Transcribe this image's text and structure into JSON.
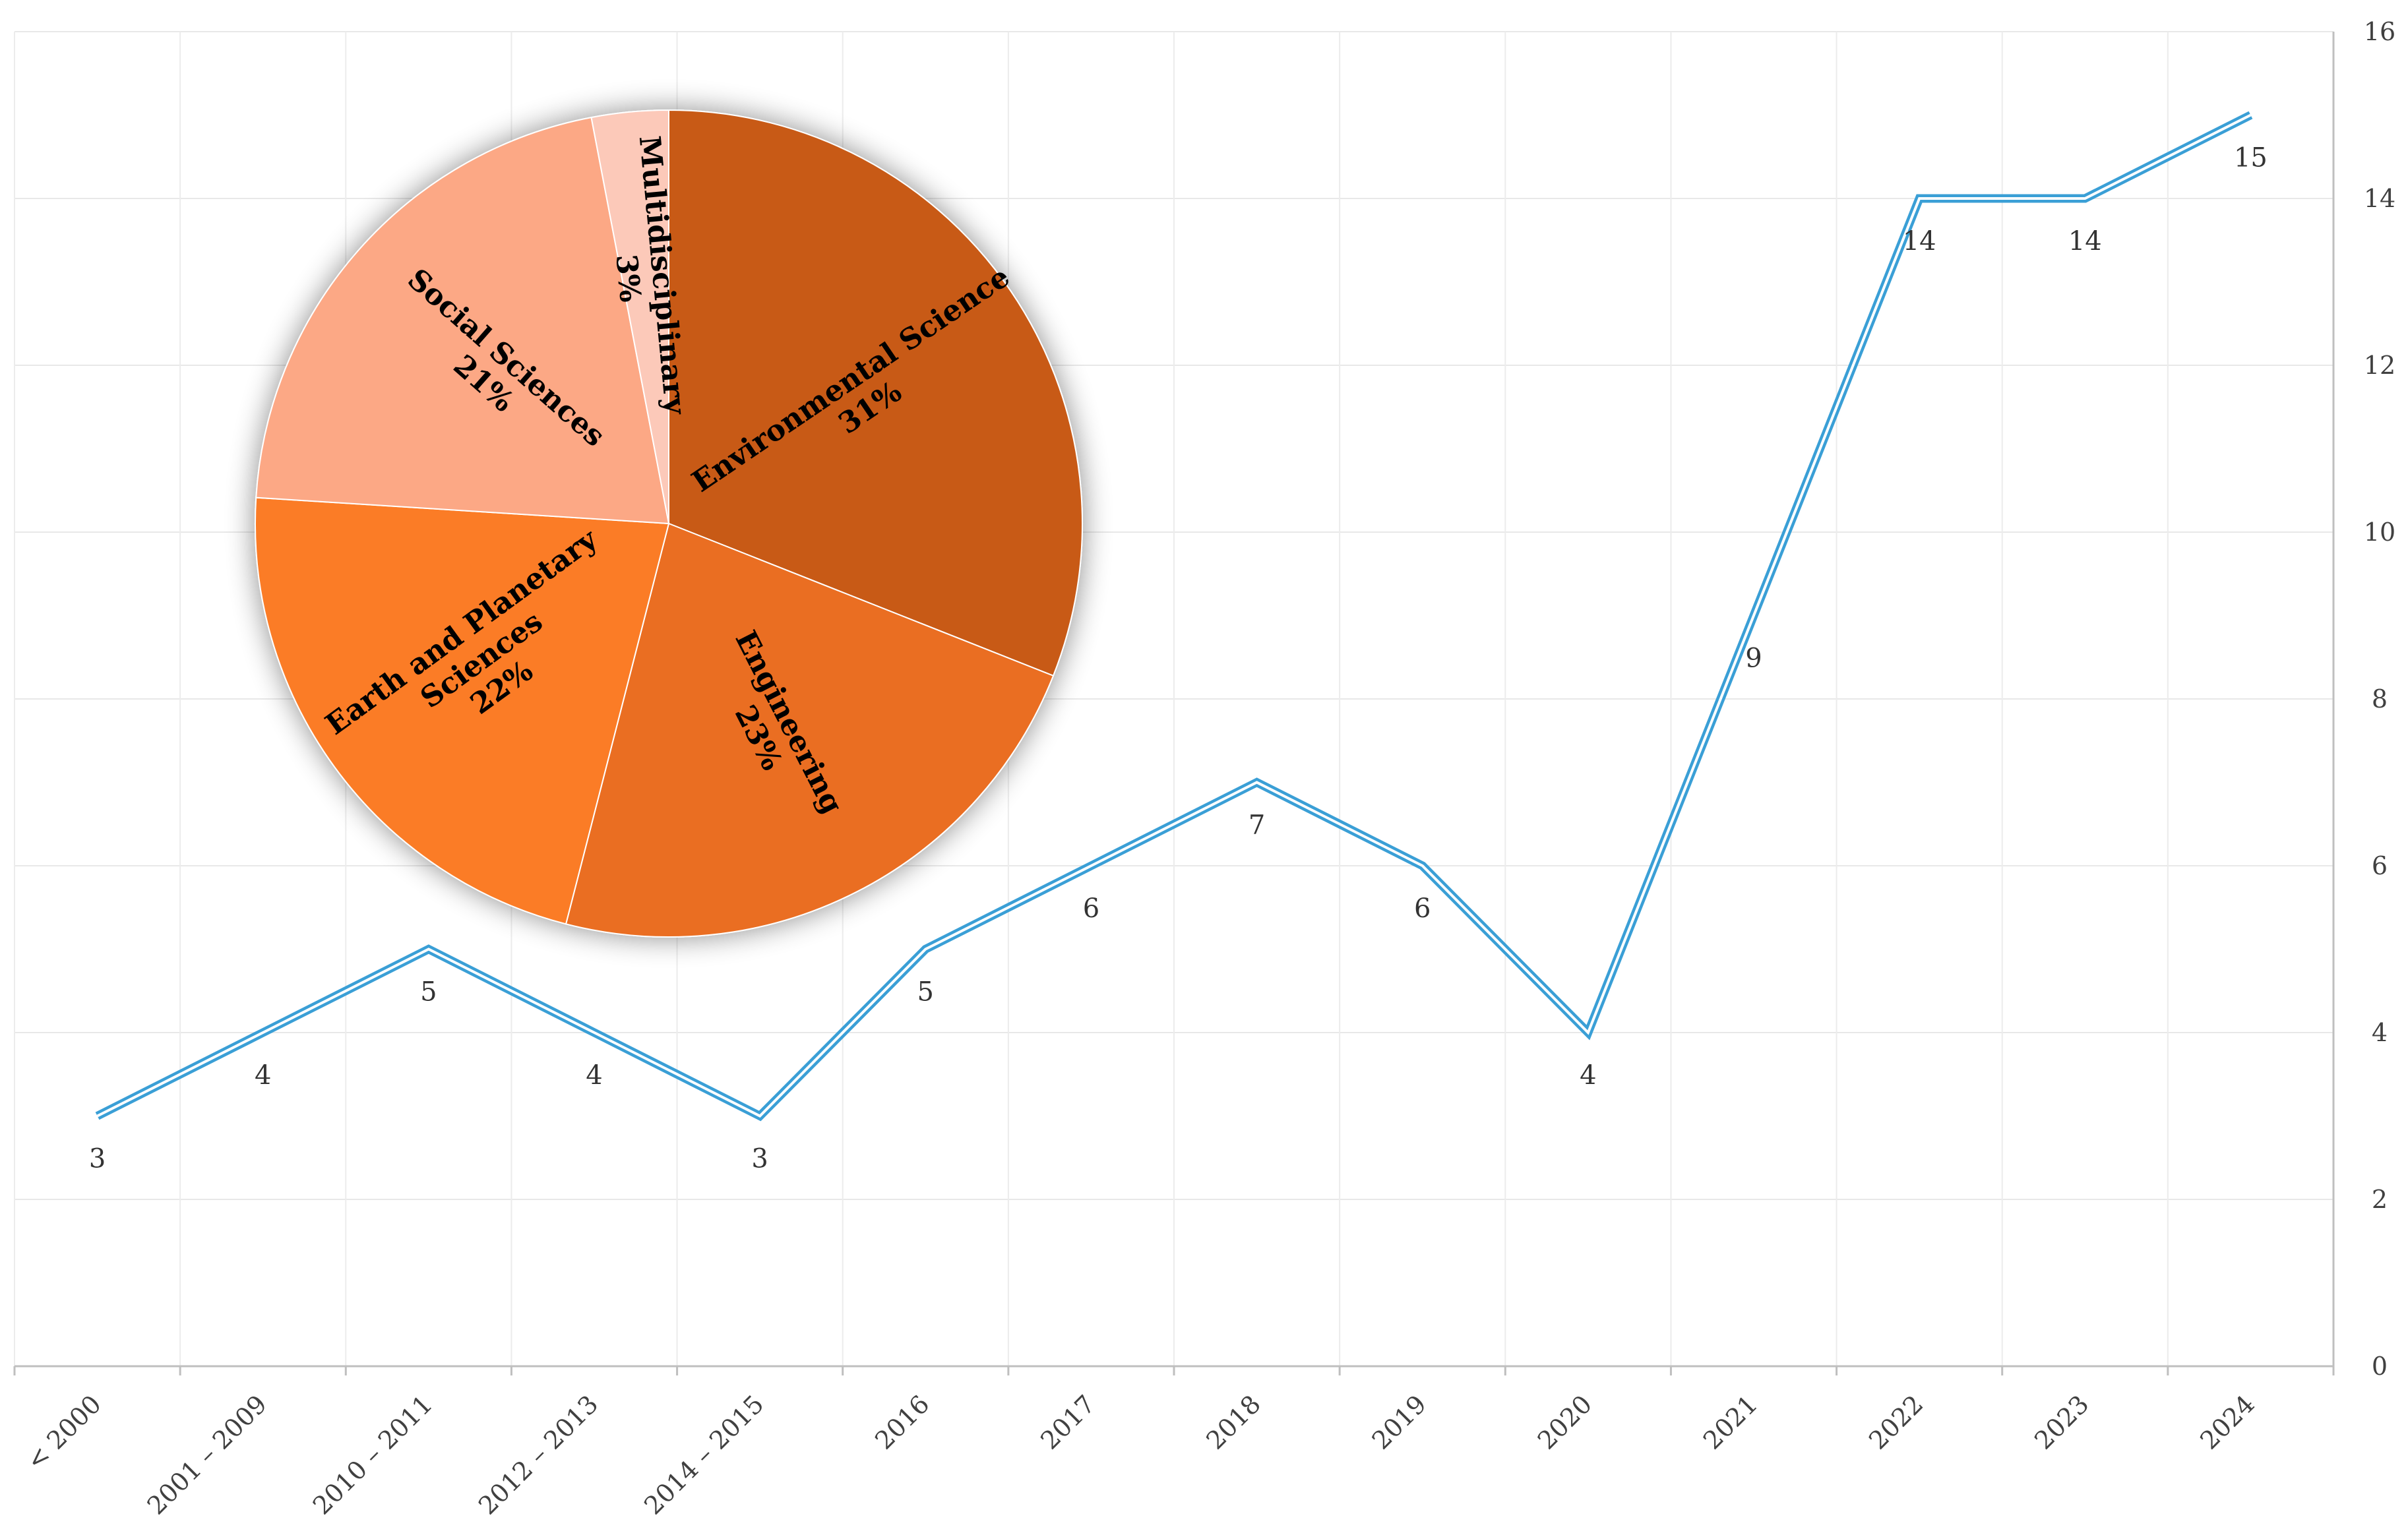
{
  "chart_data": [
    {
      "type": "line",
      "categories": [
        "< 2000",
        "2001 – 2009",
        "2010 – 2011",
        "2012 – 2013",
        "2014 – 2015",
        "2016",
        "2017",
        "2018",
        "2019",
        "2020",
        "2021",
        "2022",
        "2023",
        "2024"
      ],
      "series": [
        {
          "values": [
            3,
            4,
            5,
            4,
            3,
            5,
            6,
            7,
            6,
            4,
            9,
            14,
            14,
            15
          ],
          "color": "#3a9fd6"
        }
      ],
      "data_labels": [
        "3",
        "4",
        "5",
        "4",
        "3",
        "5",
        "6",
        "7",
        "6",
        "4",
        "9",
        "14",
        "14",
        "15"
      ],
      "ylim": [
        0,
        16
      ],
      "yticks": [
        "0",
        "2",
        "4",
        "6",
        "8",
        "10",
        "12",
        "14",
        "16"
      ],
      "y_axis_side": "right",
      "grid": true
    },
    {
      "type": "pie",
      "slices": [
        {
          "name": "Environmental Science",
          "label_lines": [
            "Environmental Science"
          ],
          "pct_label": "31%",
          "value": 31,
          "color": "#c85a17"
        },
        {
          "name": "Engineering",
          "label_lines": [
            "Engineering"
          ],
          "pct_label": "23%",
          "value": 23,
          "color": "#ea6e22"
        },
        {
          "name": "Earth and Planetary Sciences",
          "label_lines": [
            "Earth and Planetary",
            "Sciences"
          ],
          "pct_label": "22%",
          "value": 22,
          "color": "#fb7b27"
        },
        {
          "name": "Social Sciences",
          "label_lines": [
            "Social Sciences"
          ],
          "pct_label": "21%",
          "value": 21,
          "color": "#fca885"
        },
        {
          "name": "Multidisciplinary",
          "label_lines": [
            "Multidisciplinary"
          ],
          "pct_label": "3%",
          "value": 3,
          "color": "#fcc9b9"
        }
      ]
    }
  ]
}
